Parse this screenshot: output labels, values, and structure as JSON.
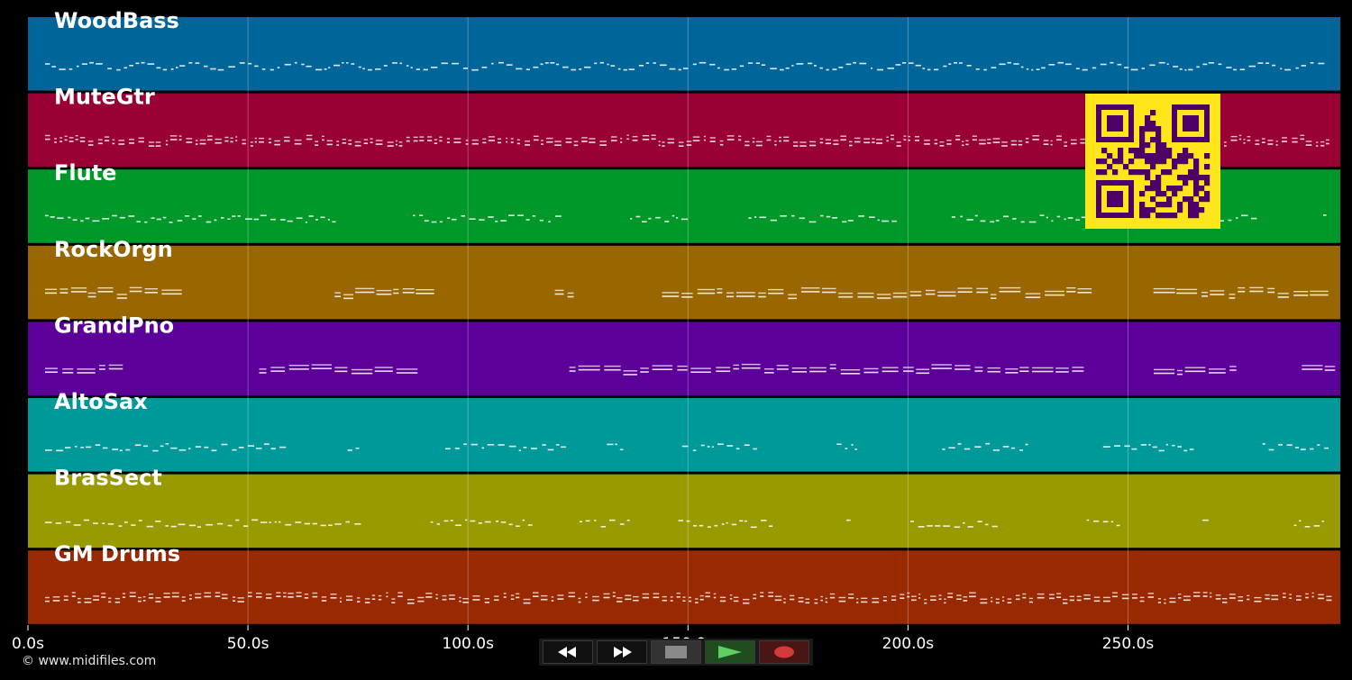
{
  "tracks": [
    {
      "name": "WoodBass",
      "color": "#006699",
      "style": "wave"
    },
    {
      "name": "MuteGtr",
      "color": "#990033",
      "style": "dense"
    },
    {
      "name": "Flute",
      "color": "#009929",
      "style": "sparse"
    },
    {
      "name": "RockOrgn",
      "color": "#996600",
      "style": "chord"
    },
    {
      "name": "GrandPno",
      "color": "#5c0099",
      "style": "chord"
    },
    {
      "name": "AltoSax",
      "color": "#009999",
      "style": "sparse"
    },
    {
      "name": "BrasSect",
      "color": "#999900",
      "style": "sparse"
    },
    {
      "name": "GM Drums",
      "color": "#992900",
      "style": "dense"
    }
  ],
  "time_axis": {
    "unit": "s",
    "max_seconds": 298,
    "ticks": [
      "0.0s",
      "50.0s",
      "100.0s",
      "150.0s",
      "200.0s",
      "250.0s"
    ]
  },
  "qr_code": {
    "fg": "#4d0066",
    "bg": "#ffe61a"
  },
  "copyright": "© www.midifiles.com",
  "transport": [
    {
      "name": "rewind-button",
      "icon": "rewind-icon"
    },
    {
      "name": "fast-forward-button",
      "icon": "fast-forward-icon"
    },
    {
      "name": "stop-button",
      "icon": "stop-icon"
    },
    {
      "name": "play-button",
      "icon": "play-icon"
    },
    {
      "name": "record-button",
      "icon": "record-icon"
    }
  ]
}
